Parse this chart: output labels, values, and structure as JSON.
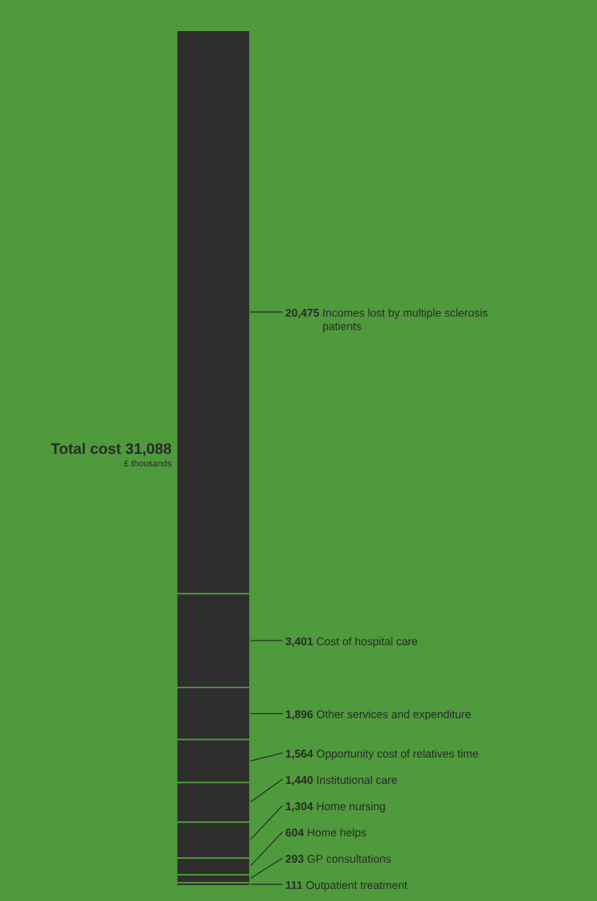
{
  "chart_data": {
    "type": "bar",
    "stacked": true,
    "categories": [
      null
    ],
    "annotations": [
      "Total cost 31,088",
      "£ thousands"
    ],
    "series": [
      {
        "name": "Outpatient treatment",
        "color": "#2e2e2e",
        "values": [
          111
        ],
        "value_labels": [
          "111"
        ]
      },
      {
        "name": "GP consultations",
        "color": "#2e2e2e",
        "values": [
          293
        ],
        "value_labels": [
          "293"
        ]
      },
      {
        "name": "Home helps",
        "color": "#2e2e2e",
        "values": [
          604
        ],
        "value_labels": [
          "604"
        ]
      },
      {
        "name": "Home nursing",
        "color": "#2e2e2e",
        "values": [
          1304
        ],
        "value_labels": [
          "1,304"
        ]
      },
      {
        "name": "Institutional care",
        "color": "#2e2e2e",
        "values": [
          1440
        ],
        "value_labels": [
          "1,440"
        ]
      },
      {
        "name": "Opportunity cost of relatives time",
        "color": "#2e2e2e",
        "values": [
          1564
        ],
        "value_labels": [
          "1,564"
        ]
      },
      {
        "name": "Other services and expenditure",
        "color": "#2e2e2e",
        "values": [
          1896
        ],
        "value_labels": [
          "1,896"
        ]
      },
      {
        "name": "Cost of hospital care",
        "color": "#2e2e2e",
        "values": [
          3401
        ],
        "value_labels": [
          "3,401"
        ]
      },
      {
        "name": "Incomes lost by multiple sclerosis patients",
        "color": "#2e2e2e",
        "values": [
          20475
        ],
        "value_labels": [
          "20,475"
        ]
      }
    ]
  }
}
